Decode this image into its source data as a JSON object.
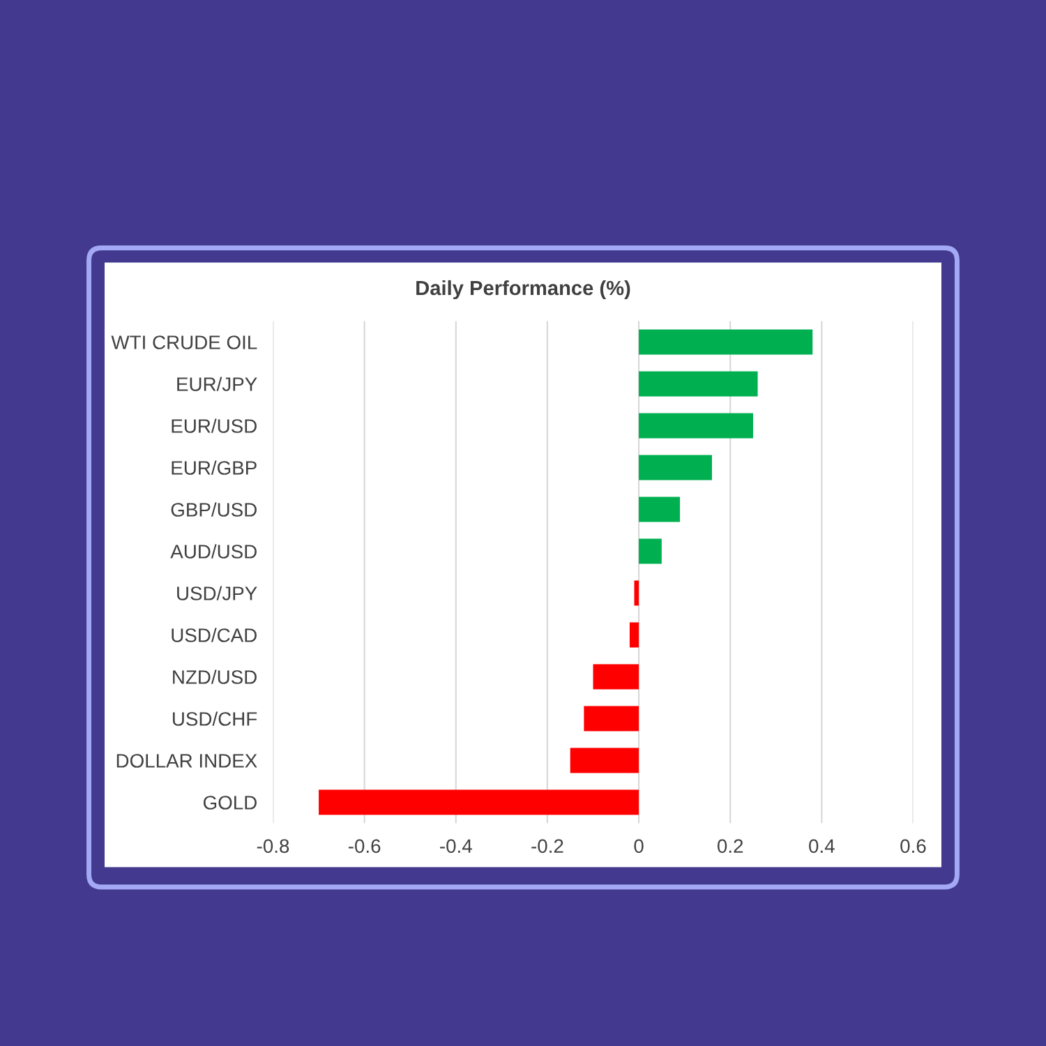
{
  "chart_data": {
    "type": "bar",
    "orientation": "horizontal",
    "title": "Daily Performance (%)",
    "categories": [
      "WTI CRUDE OIL",
      "EUR/JPY",
      "EUR/USD",
      "EUR/GBP",
      "GBP/USD",
      "AUD/USD",
      "USD/JPY",
      "USD/CAD",
      "NZD/USD",
      "USD/CHF",
      "DOLLAR INDEX",
      "GOLD"
    ],
    "values": [
      0.38,
      0.26,
      0.25,
      0.16,
      0.09,
      0.05,
      -0.01,
      -0.02,
      -0.1,
      -0.12,
      -0.15,
      -0.7
    ],
    "colors": [
      "#00b050",
      "#00b050",
      "#00b050",
      "#00b050",
      "#00b050",
      "#00b050",
      "#ff0000",
      "#ff0000",
      "#ff0000",
      "#ff0000",
      "#ff0000",
      "#ff0000"
    ],
    "xlim": [
      -0.8,
      0.6
    ],
    "xticks": [
      -0.8,
      -0.6,
      -0.4,
      -0.2,
      0,
      0.2,
      0.4,
      0.6
    ],
    "grid": "x"
  }
}
